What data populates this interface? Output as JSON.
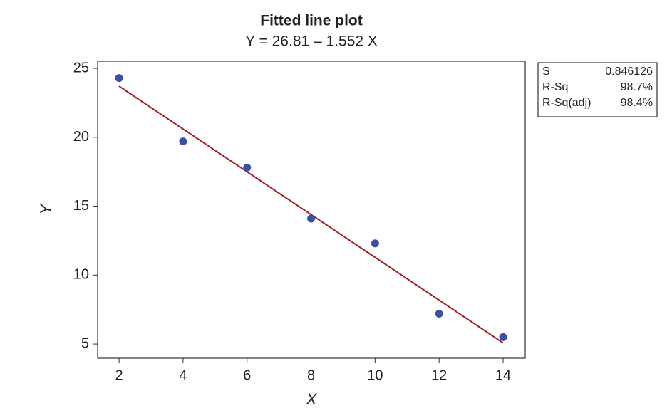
{
  "chart_data": {
    "type": "scatter",
    "title": "Fitted line plot",
    "subtitle": "Y = 26.81 – 1.552 X",
    "xlabel": "X",
    "ylabel": "Y",
    "x": [
      2,
      4,
      6,
      8,
      10,
      12,
      14
    ],
    "values": [
      24.3,
      19.7,
      17.8,
      14.1,
      12.3,
      7.2,
      5.5
    ],
    "color": "#3a4fa8",
    "fit": {
      "type": "line",
      "x": [
        2,
        14
      ],
      "values": [
        23.706,
        5.078
      ],
      "color": "#a01c24"
    },
    "xlim": [
      1.33,
      14.69
    ],
    "ylim": [
      3.97,
      25.52
    ],
    "xticks": [
      2,
      4,
      6,
      8,
      10,
      12,
      14
    ],
    "yticks": [
      5,
      10,
      15,
      20,
      25
    ],
    "stats": [
      [
        "S",
        "0.846126"
      ],
      [
        "R-Sq",
        "98.7%"
      ],
      [
        "R-Sq(adj)",
        "98.4%"
      ]
    ]
  }
}
